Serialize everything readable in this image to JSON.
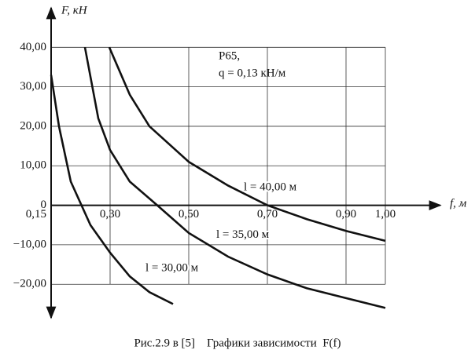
{
  "chart_data": {
    "type": "line",
    "y_label": "F, кН",
    "x_label": "f, м",
    "annotations": [
      "Р65,",
      "q = 0,13 кН/м"
    ],
    "caption": "Рис.2.9 в [5]    Графики зависимости  F(f)",
    "xlim": [
      0.15,
      1.14
    ],
    "ylim": [
      -28.5,
      50
    ],
    "xticks": [
      {
        "value": 0.15,
        "label": "0,15"
      },
      {
        "value": 0.3,
        "label": "0,30"
      },
      {
        "value": 0.5,
        "label": "0,50"
      },
      {
        "value": 0.7,
        "label": "0,70"
      },
      {
        "value": 0.9,
        "label": "0,90"
      },
      {
        "value": 1.0,
        "label": "1,00"
      }
    ],
    "yticks": [
      {
        "value": 40,
        "label": "40,00"
      },
      {
        "value": 30,
        "label": "30,00"
      },
      {
        "value": 20,
        "label": "20,00"
      },
      {
        "value": 10,
        "label": "10,00"
      },
      0,
      {
        "value": -10,
        "label": "−10,00"
      },
      {
        "value": -20,
        "label": "−20,00"
      }
    ],
    "grid": true,
    "series": [
      {
        "name": "l = 30,00 м",
        "color": "#111111",
        "x": [
          0.15,
          0.17,
          0.2,
          0.25,
          0.3,
          0.35,
          0.4,
          0.46
        ],
        "values": [
          33,
          20,
          6,
          -5,
          -12,
          -18,
          -22,
          -25
        ]
      },
      {
        "name": "l = 35,00 м",
        "color": "#111111",
        "x": [
          0.236,
          0.27,
          0.3,
          0.35,
          0.42,
          0.5,
          0.6,
          0.7,
          0.8,
          0.9,
          1.0
        ],
        "values": [
          40,
          22,
          14,
          6,
          0,
          -7,
          -13,
          -17.5,
          -21,
          -23.5,
          -26
        ]
      },
      {
        "name": "l = 40,00 м",
        "color": "#111111",
        "x": [
          0.298,
          0.35,
          0.4,
          0.5,
          0.6,
          0.7,
          0.8,
          0.9,
          1.0
        ],
        "values": [
          40,
          28,
          20,
          11,
          5,
          0,
          -3.5,
          -6.5,
          -9
        ]
      }
    ]
  }
}
